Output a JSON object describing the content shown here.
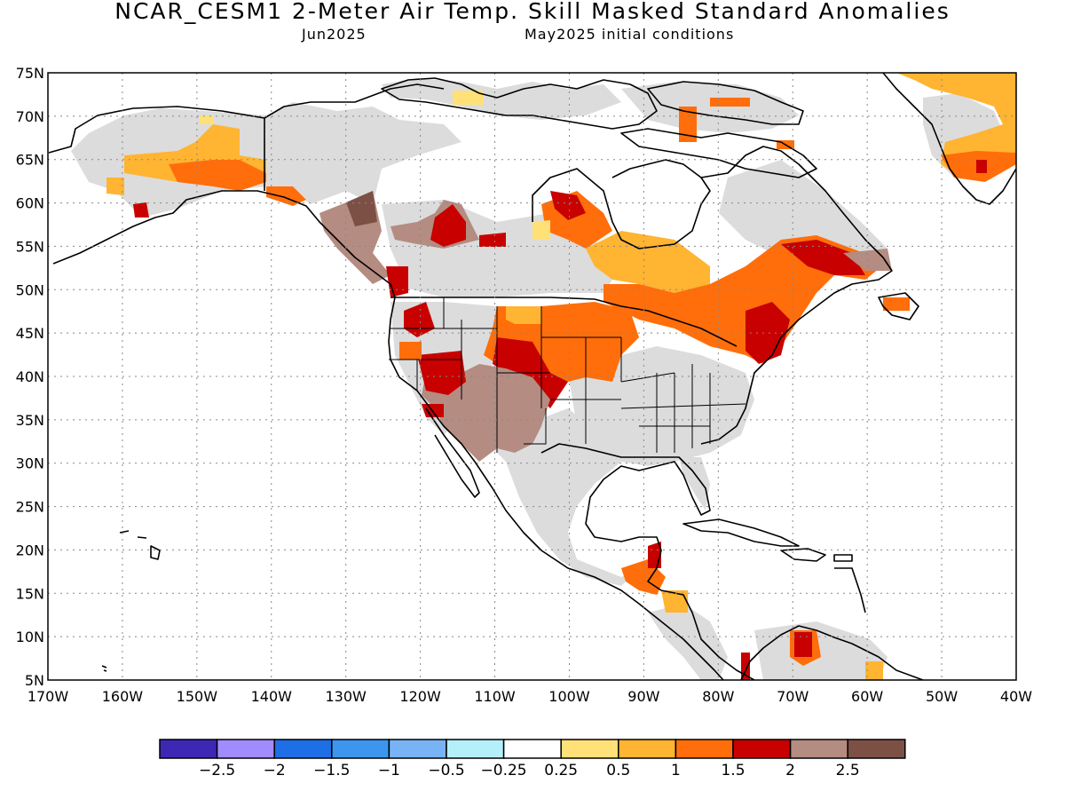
{
  "header": {
    "title": "NCAR_CESM1 2-Meter Air Temp. Skill Masked Standard Anomalies",
    "valid_month": "Jun2025",
    "init_conditions": "May2025 initial conditions"
  },
  "map": {
    "lat_labels": [
      "75N",
      "70N",
      "65N",
      "60N",
      "55N",
      "50N",
      "45N",
      "40N",
      "35N",
      "30N",
      "25N",
      "20N",
      "15N",
      "10N",
      "5N"
    ],
    "lon_labels": [
      "170W",
      "160W",
      "150W",
      "140W",
      "130W",
      "120W",
      "110W",
      "100W",
      "90W",
      "80W",
      "70W",
      "60W",
      "50W",
      "40W"
    ],
    "lat_range": [
      5,
      75
    ],
    "lon_range": [
      -170,
      -40
    ],
    "grid": "dotted",
    "colors": {
      "skill_masked_land": "#dcdcdc",
      "ocean": "#ffffff",
      "coastline": "#000000"
    }
  },
  "colorbar": {
    "colors": [
      "#3c28b4",
      "#a08cff",
      "#1e6ee6",
      "#3c96f0",
      "#78b4f5",
      "#b4f0fa",
      "#ffffff",
      "#ffe178",
      "#ffb432",
      "#ff6e0a",
      "#c80000",
      "#b48c82",
      "#7d5046"
    ],
    "tick_labels": [
      "−2.5",
      "−2",
      "−1.5",
      "−1",
      "−0.5",
      "−0.25",
      "0.25",
      "0.5",
      "1",
      "1.5",
      "2",
      "2.5"
    ]
  }
}
